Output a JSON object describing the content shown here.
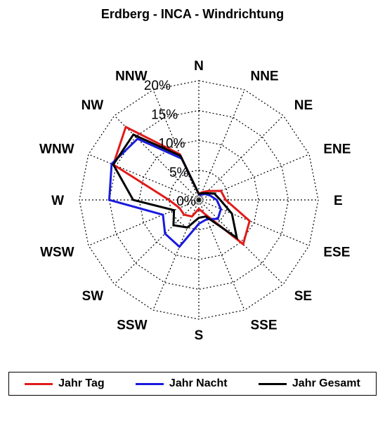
{
  "chart_data": {
    "type": "radar",
    "title": "Erdberg - INCA - Windrichtung",
    "directions": [
      "N",
      "NNE",
      "NE",
      "ENE",
      "E",
      "ESE",
      "SE",
      "SSE",
      "S",
      "SSW",
      "SW",
      "WSW",
      "W",
      "WNW",
      "NW",
      "NNW"
    ],
    "radial_ticks": [
      "0%",
      "5%",
      "10%",
      "15%",
      "20%"
    ],
    "rlim": [
      0,
      20
    ],
    "grid": true,
    "legend_position": "bottom",
    "series": [
      {
        "name": "Jahr Tag",
        "color": "#e01b1b",
        "values": [
          1.0,
          1.4,
          2.1,
          4.0,
          4.5,
          9.2,
          10.5,
          2.5,
          1.5,
          3.0,
          3.5,
          3.5,
          5.0,
          15.5,
          17.3,
          8.3
        ]
      },
      {
        "name": "Jahr Nacht",
        "color": "#1a1adc",
        "values": [
          1.0,
          0.9,
          1.4,
          2.0,
          3.0,
          4.0,
          4.5,
          3.5,
          4.0,
          8.5,
          8.0,
          6.5,
          15.0,
          15.8,
          14.5,
          7.5
        ]
      },
      {
        "name": "Jahr Gesamt",
        "color": "#000000",
        "values": [
          1.0,
          1.2,
          1.6,
          2.8,
          3.6,
          6.0,
          9.0,
          3.0,
          3.0,
          5.0,
          6.0,
          4.5,
          11.0,
          15.5,
          15.5,
          8.0
        ]
      }
    ]
  }
}
